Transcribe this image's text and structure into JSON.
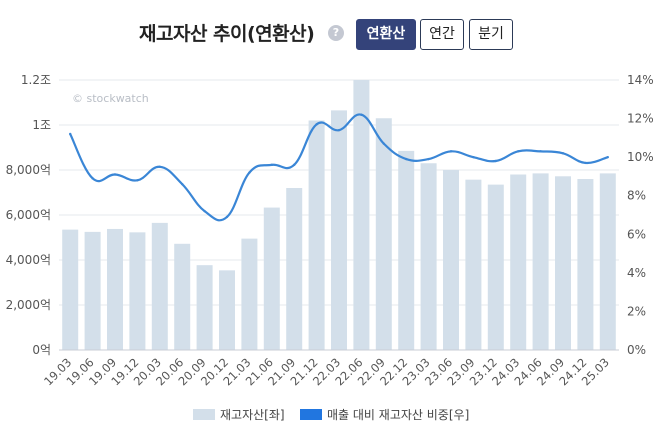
{
  "header": {
    "title": "재고자산 추이(연환산)",
    "help_glyph": "?",
    "tabs": [
      {
        "label": "연환산",
        "active": true
      },
      {
        "label": "연간",
        "active": false
      },
      {
        "label": "분기",
        "active": false
      }
    ]
  },
  "watermark": "© stockwatch",
  "colors": {
    "bar": "#d3dfea",
    "line": "#3a86d6",
    "active_tab": "#34437a",
    "legend_line": "#2176e0"
  },
  "chart_data": {
    "type": "bar",
    "categories": [
      "19.03",
      "19.06",
      "19.09",
      "19.12",
      "20.03",
      "20.06",
      "20.09",
      "20.12",
      "21.03",
      "21.06",
      "21.09",
      "21.12",
      "22.03",
      "22.06",
      "22.09",
      "22.12",
      "23.03",
      "23.06",
      "23.09",
      "23.12",
      "24.03",
      "24.06",
      "24.09",
      "24.12",
      "25.03"
    ],
    "series": [
      {
        "name": "재고자산[좌]",
        "type": "bar",
        "axis": "left",
        "values": [
          5350,
          5250,
          5380,
          5230,
          5650,
          4720,
          3770,
          3540,
          4950,
          6330,
          7200,
          10200,
          10650,
          12000,
          10300,
          8850,
          8300,
          8000,
          7570,
          7350,
          7800,
          7850,
          7720,
          7600,
          7850
        ]
      },
      {
        "name": "매출 대비 재고자산 비중[우]",
        "type": "line",
        "axis": "right",
        "values": [
          11.2,
          8.9,
          9.1,
          8.8,
          9.5,
          8.6,
          7.2,
          6.9,
          9.2,
          9.6,
          9.6,
          11.7,
          11.4,
          12.2,
          10.7,
          9.9,
          9.9,
          10.3,
          10.0,
          9.8,
          10.3,
          10.3,
          10.2,
          9.7,
          10.0
        ]
      }
    ],
    "y_left": {
      "range": [
        0,
        12000
      ],
      "ticks": [
        0,
        2000,
        4000,
        6000,
        8000,
        10000,
        12000
      ],
      "tick_labels": [
        "0억",
        "2,000억",
        "4,000억",
        "6,000억",
        "8,000억",
        "1조",
        "1.2조"
      ]
    },
    "y_right": {
      "range": [
        0,
        14
      ],
      "ticks": [
        0,
        2,
        4,
        6,
        8,
        10,
        12,
        14
      ],
      "tick_labels": [
        "0%",
        "2%",
        "4%",
        "6%",
        "8%",
        "10%",
        "12%",
        "14%"
      ]
    },
    "grid": true,
    "legend_position": "bottom"
  }
}
